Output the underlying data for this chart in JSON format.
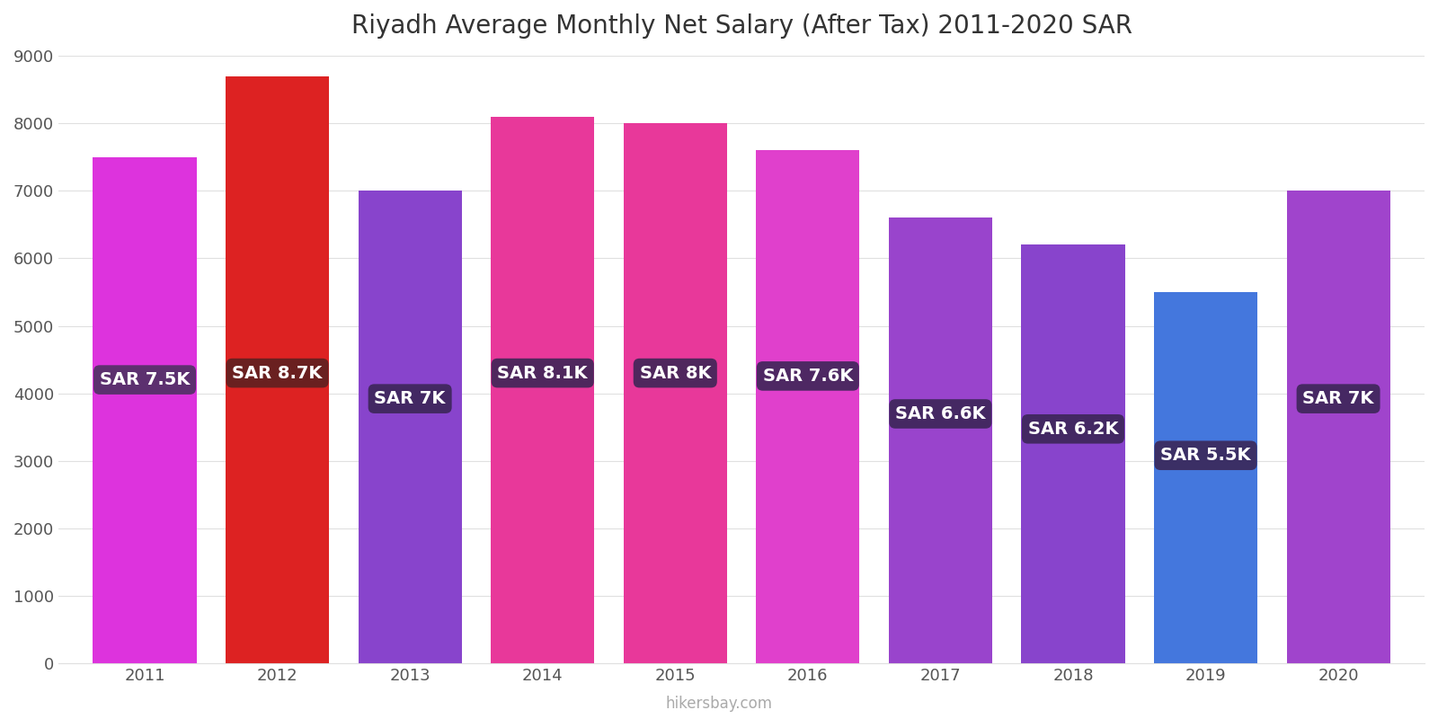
{
  "title": "Riyadh Average Monthly Net Salary (After Tax) 2011-2020 SAR",
  "years": [
    2011,
    2012,
    2013,
    2014,
    2015,
    2016,
    2017,
    2018,
    2019,
    2020
  ],
  "values": [
    7500,
    8700,
    7000,
    8100,
    8000,
    7600,
    6600,
    6200,
    5500,
    7000
  ],
  "bar_colors": [
    "#dd33dd",
    "#dd2222",
    "#8844cc",
    "#e8389a",
    "#e8389a",
    "#e040cc",
    "#9944cc",
    "#8844cc",
    "#4477dd",
    "#a044cc"
  ],
  "labels": [
    "SAR 7.5K",
    "SAR 8.7K",
    "SAR 7K",
    "SAR 8.1K",
    "SAR 8K",
    "SAR 7.6K",
    "SAR 6.6K",
    "SAR 6.2K",
    "SAR 5.5K",
    "SAR 7K"
  ],
  "label_bg_colors": [
    "#4a3060",
    "#5a2020",
    "#3a2555",
    "#3a2555",
    "#3a2555",
    "#3a2555",
    "#3a2555",
    "#3a2555",
    "#3a2555",
    "#3a2555"
  ],
  "label_text_color": "#ffffff",
  "ylim": [
    0,
    9000
  ],
  "yticks": [
    0,
    1000,
    2000,
    3000,
    4000,
    5000,
    6000,
    7000,
    8000,
    9000
  ],
  "footer": "hikersbay.com",
  "bg_color": "#ffffff",
  "grid_color": "#e0e0e0",
  "title_color": "#333333",
  "axis_color": "#555555"
}
